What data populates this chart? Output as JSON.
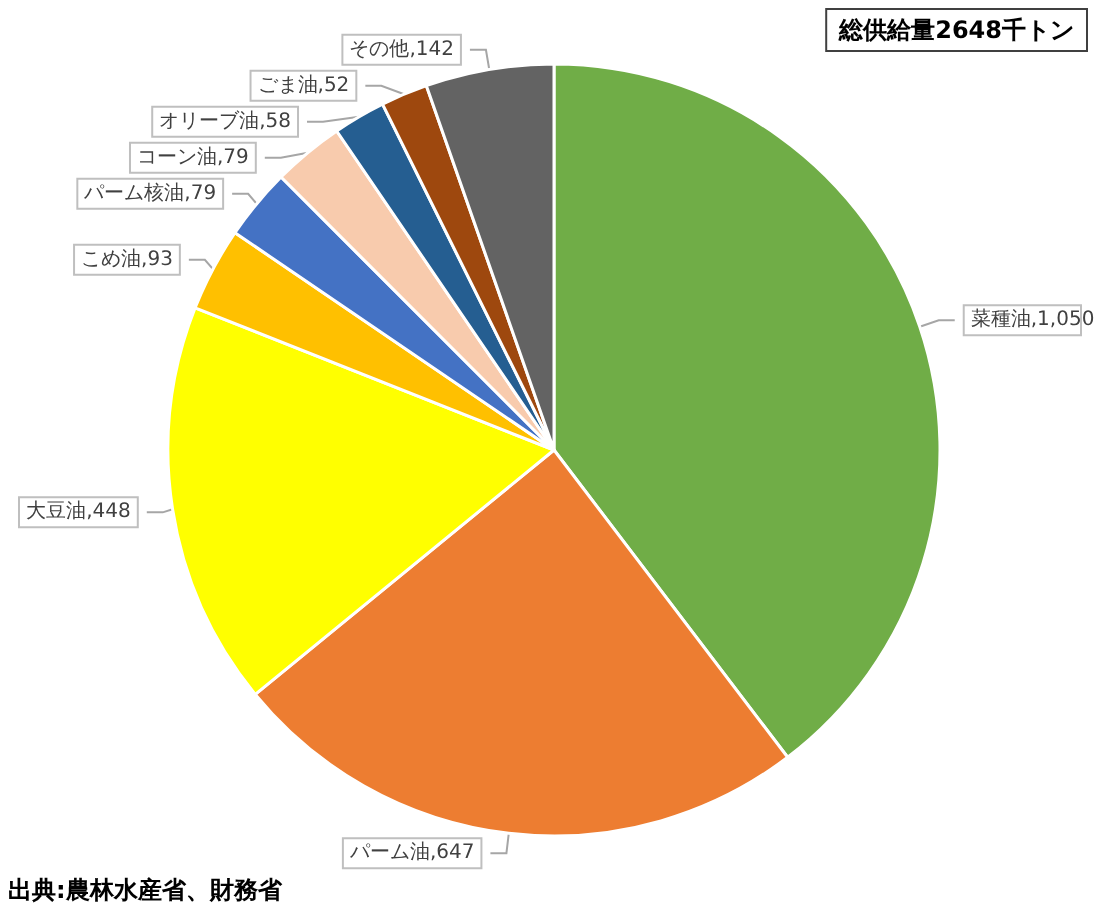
{
  "chart_data": {
    "type": "pie",
    "title": "総供給量2648千トン",
    "categories": [
      "菜種油",
      "パーム油",
      "大豆油",
      "こめ油",
      "パーム核油",
      "コーン油",
      "オリーブ油",
      "ごま油",
      "その他"
    ],
    "values": [
      1050,
      647,
      448,
      93,
      79,
      79,
      58,
      52,
      142
    ],
    "colors": [
      "#70ad47",
      "#ed7d31",
      "#ffff00",
      "#ffc000",
      "#4472c4",
      "#f8cbad",
      "#255e91",
      "#9e480e",
      "#636363"
    ],
    "value_labels": [
      "1,050",
      "647",
      "448",
      "93",
      "79",
      "79",
      "58",
      "52",
      "142"
    ],
    "annotations": [
      "出典:農林水産省、財務省"
    ]
  }
}
